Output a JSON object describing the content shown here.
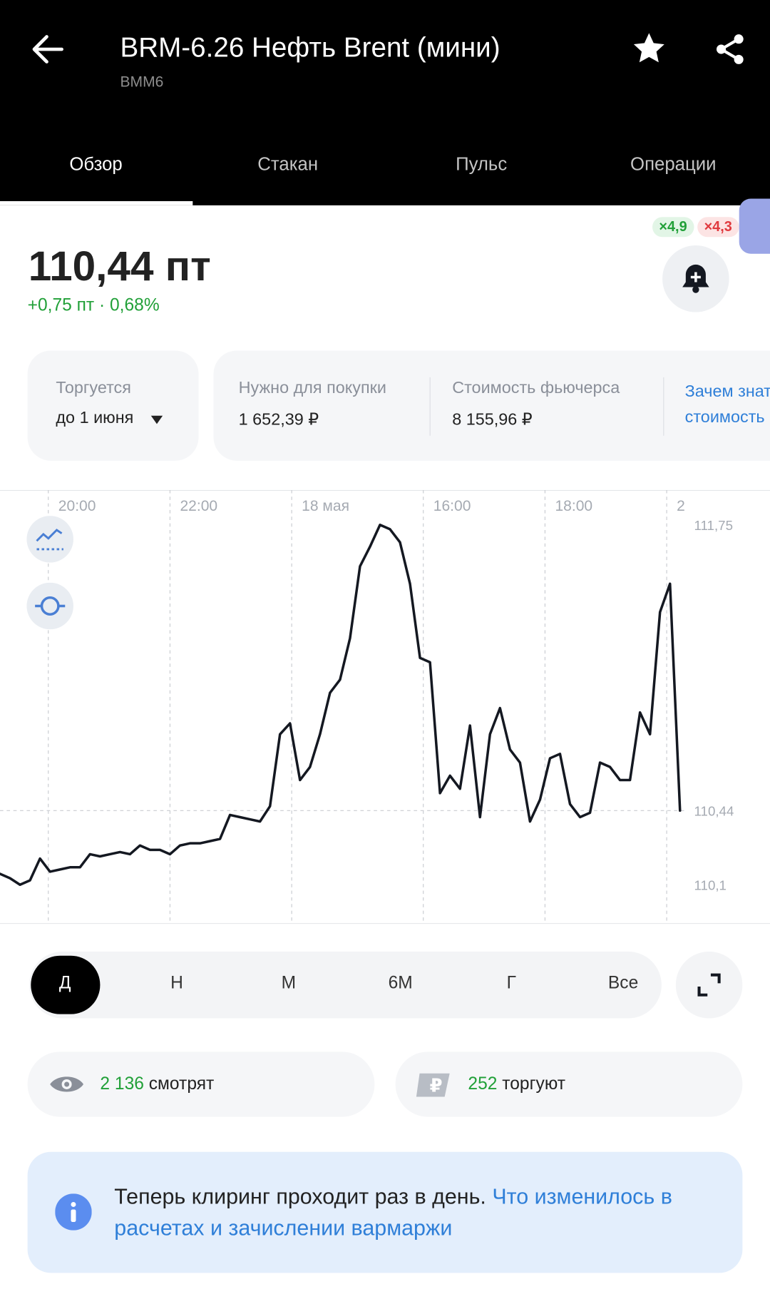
{
  "header": {
    "title": "BRM-6.26 Нефть Brent (мини)",
    "ticker": "BMM6"
  },
  "tabs": [
    "Обзор",
    "Стакан",
    "Пульс",
    "Операции"
  ],
  "price": {
    "value": "110,44 пт",
    "change": "+0,75 пт · 0,68%"
  },
  "badges": [
    "×4,9",
    "×4,3"
  ],
  "info": [
    {
      "label": "Торгуется",
      "value": "до 1 июня"
    },
    {
      "label": "Нужно для покупки",
      "value": "1 652,39 ₽"
    },
    {
      "label": "Стоимость фьючерса",
      "value": "8 155,96 ₽"
    }
  ],
  "info_link": [
    "Зачем знать",
    "стоимость"
  ],
  "chart_data": {
    "type": "line",
    "color": "#141821",
    "values": [
      110.15,
      110.13,
      110.1,
      110.12,
      110.22,
      110.16,
      110.17,
      110.18,
      110.18,
      110.24,
      110.23,
      110.24,
      110.25,
      110.24,
      110.28,
      110.26,
      110.26,
      110.24,
      110.28,
      110.29,
      110.29,
      110.3,
      110.31,
      110.42,
      110.41,
      110.4,
      110.39,
      110.46,
      110.79,
      110.84,
      110.58,
      110.64,
      110.79,
      110.98,
      111.04,
      111.23,
      111.56,
      111.65,
      111.75,
      111.73,
      111.67,
      111.48,
      111.14,
      111.12,
      110.52,
      110.6,
      110.54,
      110.83,
      110.41,
      110.79,
      110.91,
      110.72,
      110.66,
      110.39,
      110.49,
      110.68,
      110.7,
      110.47,
      110.41,
      110.43,
      110.66,
      110.64,
      110.58,
      110.58,
      110.89,
      110.79,
      111.35,
      111.48,
      110.44
    ],
    "xlim": [
      0,
      77
    ],
    "xticks": [
      {
        "value": 4.83,
        "label": "20:00"
      },
      {
        "value": 17,
        "label": "22:00"
      },
      {
        "value": 29.17,
        "label": "18 мая"
      },
      {
        "value": 42.33,
        "label": "16:00"
      },
      {
        "value": 54.5,
        "label": "18:00"
      },
      {
        "value": 66.67,
        "label": "2"
      }
    ],
    "ylim": [
      109.92,
      111.91
    ],
    "yticks": [
      {
        "value": 111.75,
        "label": "111,75"
      },
      {
        "value": 110.44,
        "label": "110,44"
      },
      {
        "value": 110.1,
        "label": "110,1"
      }
    ],
    "reference_tick": 1
  },
  "periods": [
    "Д",
    "Н",
    "М",
    "6М",
    "Г",
    "Все"
  ],
  "stats": [
    {
      "count": "2 136",
      "label": "смотрят"
    },
    {
      "count": "252",
      "label": "торгуют"
    }
  ],
  "notice": {
    "text": "Теперь клиринг проходит раз в день.",
    "link": "Что изменилось в расчетах и зачислении вармаржи"
  }
}
